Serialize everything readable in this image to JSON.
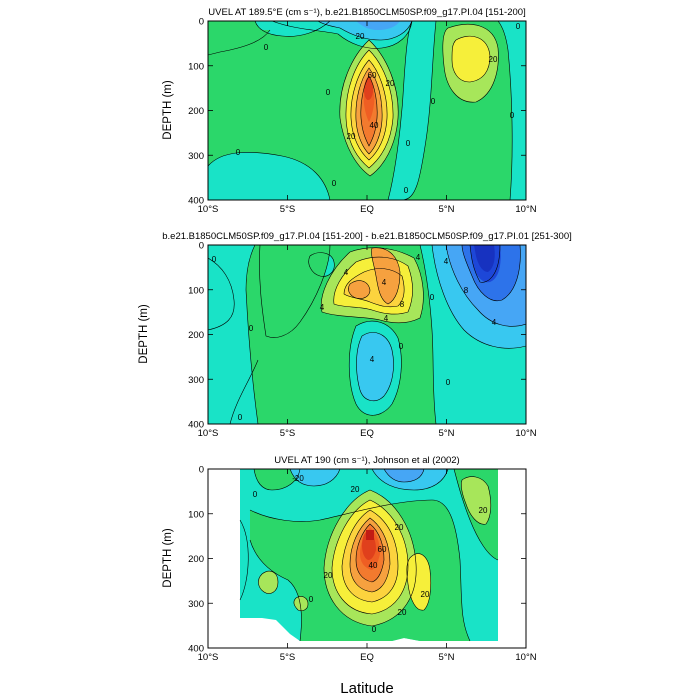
{
  "chart_data": [
    {
      "type": "contour",
      "title": "UVEL AT 189.5°E (cm s⁻¹), b.e21.B1850CLM50SP.f09_g17.PI.04 [151-200]",
      "ylabel": "DEPTH (m)",
      "xlabel": "",
      "x_ticks": [
        "10°S",
        "5°S",
        "EQ",
        "5°N",
        "10°N"
      ],
      "y_ticks": [
        "0",
        "100",
        "200",
        "300",
        "400"
      ],
      "xlim": [
        -10,
        10
      ],
      "ylim": [
        400,
        0
      ],
      "contour_interval": 10,
      "max_value": 80,
      "labels": [
        "20",
        "0",
        "0",
        "60",
        "20",
        "20",
        "40",
        "0",
        "0",
        "0",
        "0",
        "0",
        "0",
        "20",
        "0"
      ]
    },
    {
      "type": "contour",
      "title": "b.e21.B1850CLM50SP.f09_g17.PI.04 [151-200] - b.e21.B1850CLM50SP.f09_g17.PI.01 [251-300]",
      "ylabel": "DEPTH (m)",
      "xlabel": "",
      "x_ticks": [
        "10°S",
        "5°S",
        "EQ",
        "5°N",
        "10°N"
      ],
      "y_ticks": [
        "0",
        "100",
        "200",
        "300",
        "400"
      ],
      "xlim": [
        -10,
        10
      ],
      "ylim": [
        400,
        0
      ],
      "contour_interval": 2,
      "labels": [
        "4",
        "4",
        "8",
        "4",
        "4",
        "0",
        "0",
        "0",
        "0",
        "0",
        "4",
        "4",
        "8",
        "4",
        "4",
        "0"
      ]
    },
    {
      "type": "contour",
      "title": "UVEL AT 190 (cm s⁻¹), Johnson et al (2002)",
      "ylabel": "DEPTH (m)",
      "xlabel": "Latitude",
      "x_ticks": [
        "10°S",
        "5°S",
        "EQ",
        "5°N",
        "10°N"
      ],
      "y_ticks": [
        "0",
        "100",
        "200",
        "300",
        "400"
      ],
      "xlim": [
        -10,
        10
      ],
      "ylim": [
        400,
        0
      ],
      "contour_interval": 10,
      "max_value": 100,
      "labels": [
        "-20",
        "20",
        "0",
        "20",
        "60",
        "20",
        "40",
        "20",
        "20",
        "0",
        "20",
        "0"
      ]
    }
  ]
}
